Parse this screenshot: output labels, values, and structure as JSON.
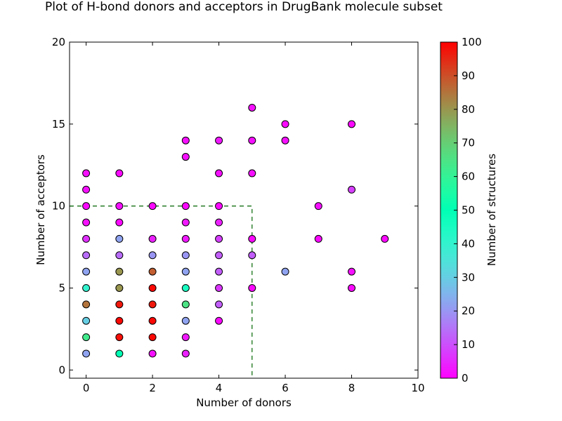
{
  "chart_data": {
    "type": "scatter",
    "title": "Plot of H-bond donors and acceptors in DrugBank molecule subset",
    "xlabel": "Number of donors",
    "ylabel": "Number of acceptors",
    "xlim": [
      -0.5,
      10
    ],
    "ylim": [
      -0.5,
      20
    ],
    "xticks": [
      0,
      2,
      4,
      6,
      8,
      10
    ],
    "yticks": [
      0,
      5,
      10,
      15,
      20
    ],
    "colorbar": {
      "label": "Number of structures",
      "range": [
        0,
        100
      ],
      "ticks": [
        0,
        10,
        20,
        30,
        40,
        50,
        60,
        70,
        80,
        90,
        100
      ],
      "colormap": "rainbow"
    },
    "reference_box": {
      "x_max": 5,
      "y_max": 10,
      "color": "#006400",
      "style": "dashed"
    },
    "points": [
      [
        0,
        12,
        2
      ],
      [
        0,
        11,
        2
      ],
      [
        0,
        10,
        1
      ],
      [
        0,
        9,
        2
      ],
      [
        0,
        8,
        6
      ],
      [
        0,
        7,
        14
      ],
      [
        0,
        6,
        22
      ],
      [
        0,
        5,
        40
      ],
      [
        0,
        4,
        85
      ],
      [
        0,
        3,
        30
      ],
      [
        0,
        2,
        63
      ],
      [
        0,
        1,
        22
      ],
      [
        1,
        12,
        1
      ],
      [
        1,
        10,
        2
      ],
      [
        1,
        9,
        1
      ],
      [
        1,
        8,
        22
      ],
      [
        1,
        7,
        14
      ],
      [
        1,
        6,
        80
      ],
      [
        1,
        5,
        80
      ],
      [
        1,
        4,
        97
      ],
      [
        1,
        3,
        99
      ],
      [
        1,
        2,
        98
      ],
      [
        1,
        1,
        50
      ],
      [
        2,
        10,
        1
      ],
      [
        2,
        8,
        4
      ],
      [
        2,
        7,
        20
      ],
      [
        2,
        6,
        88
      ],
      [
        2,
        5,
        99
      ],
      [
        2,
        4,
        97
      ],
      [
        2,
        3,
        99
      ],
      [
        2,
        2,
        99
      ],
      [
        2,
        1,
        2
      ],
      [
        3,
        14,
        2
      ],
      [
        3,
        13,
        2
      ],
      [
        3,
        10,
        1
      ],
      [
        3,
        9,
        3
      ],
      [
        3,
        8,
        3
      ],
      [
        3,
        7,
        20
      ],
      [
        3,
        6,
        22
      ],
      [
        3,
        5,
        45
      ],
      [
        3,
        4,
        65
      ],
      [
        3,
        3,
        22
      ],
      [
        3,
        2,
        3
      ],
      [
        3,
        1,
        4
      ],
      [
        4,
        14,
        3
      ],
      [
        4,
        12,
        2
      ],
      [
        4,
        10,
        1
      ],
      [
        4,
        9,
        4
      ],
      [
        4,
        8,
        8
      ],
      [
        4,
        7,
        12
      ],
      [
        4,
        6,
        12
      ],
      [
        4,
        5,
        7
      ],
      [
        4,
        4,
        12
      ],
      [
        4,
        3,
        1
      ],
      [
        5,
        16,
        2
      ],
      [
        5,
        14,
        2
      ],
      [
        5,
        12,
        2
      ],
      [
        5,
        8,
        1
      ],
      [
        5,
        7,
        12
      ],
      [
        5,
        5,
        1
      ],
      [
        6,
        15,
        1
      ],
      [
        6,
        14,
        2
      ],
      [
        6,
        6,
        22
      ],
      [
        7,
        10,
        2
      ],
      [
        7,
        8,
        1
      ],
      [
        8,
        15,
        1
      ],
      [
        8,
        11,
        8
      ],
      [
        8,
        6,
        2
      ],
      [
        8,
        5,
        1
      ],
      [
        9,
        8,
        1
      ]
    ]
  }
}
